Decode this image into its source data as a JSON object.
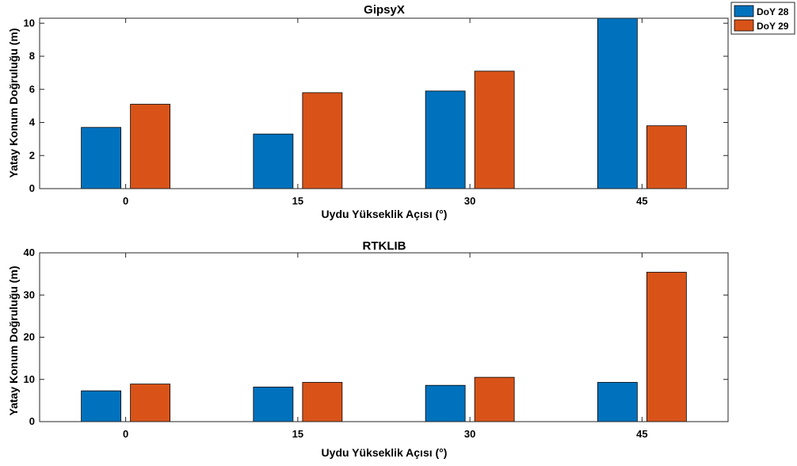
{
  "colors": {
    "doy28": "#0072BD",
    "doy29": "#D95319"
  },
  "legend": {
    "placement": "top-right",
    "entries": [
      "DoY 28",
      "DoY 29"
    ]
  },
  "chart_data": [
    {
      "type": "bar",
      "title": "GipsyX",
      "xlabel": "Uydu Yükseklik Açısı (°)",
      "ylabel": "Yatay Konum Doğruluğu (m)",
      "categories": [
        "0",
        "15",
        "30",
        "45"
      ],
      "ylim": [
        0,
        10.3
      ],
      "yticks": [
        "0",
        "2",
        "4",
        "6",
        "8",
        "10"
      ],
      "series": [
        {
          "name": "DoY 28",
          "values": [
            3.7,
            3.3,
            5.9,
            10.4
          ]
        },
        {
          "name": "DoY 29",
          "values": [
            5.1,
            5.8,
            7.1,
            3.8
          ]
        }
      ]
    },
    {
      "type": "bar",
      "title": "RTKLIB",
      "xlabel": "Uydu Yükseklik Açısı (°)",
      "ylabel": "Yatay Konum Doğruluğu (m)",
      "categories": [
        "0",
        "15",
        "30",
        "45"
      ],
      "ylim": [
        0,
        40
      ],
      "yticks": [
        "0",
        "10",
        "20",
        "30",
        "40"
      ],
      "series": [
        {
          "name": "DoY 28",
          "values": [
            7.3,
            8.2,
            8.6,
            9.3
          ]
        },
        {
          "name": "DoY 29",
          "values": [
            8.9,
            9.3,
            10.5,
            35.4
          ]
        }
      ]
    }
  ]
}
